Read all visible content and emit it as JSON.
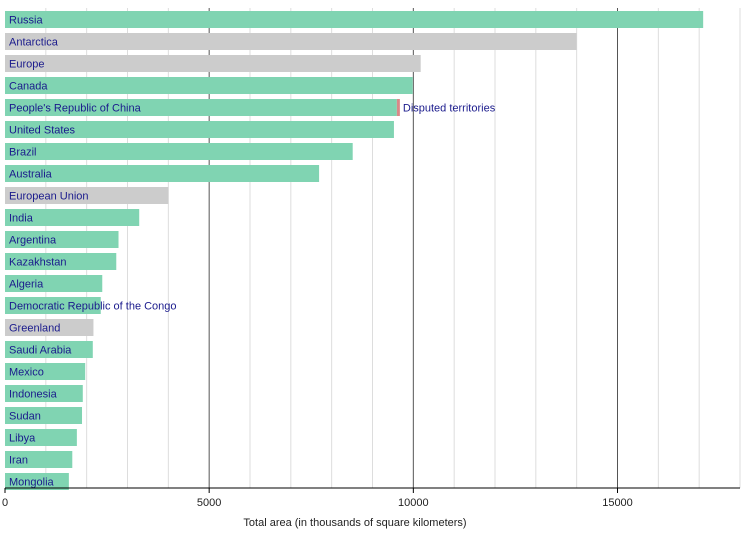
{
  "chart_data": {
    "type": "bar",
    "orientation": "horizontal",
    "xlabel": "Total area (in thousands of square kilometers)",
    "xlim": [
      0,
      18000
    ],
    "xticks": [
      0,
      5000,
      10000,
      15000
    ],
    "minor_grid_step": 1000,
    "grid": true,
    "colors": {
      "country": "#80d4b2",
      "region": "#cccccc",
      "disputed": "#d98888"
    },
    "categories": [
      "Russia",
      "Antarctica",
      "Europe",
      "Canada",
      "People's Republic of China",
      "United States",
      "Brazil",
      "Australia",
      "European Union",
      "India",
      "Argentina",
      "Kazakhstan",
      "Algeria",
      "Democratic Republic of the Congo",
      "Greenland",
      "Saudi Arabia",
      "Mexico",
      "Indonesia",
      "Sudan",
      "Libya",
      "Iran",
      "Mongolia"
    ],
    "values": [
      17098,
      14000,
      10180,
      9985,
      9597,
      9525,
      8515,
      7692,
      4000,
      3287,
      2780,
      2725,
      2382,
      2345,
      2166,
      2150,
      1964,
      1905,
      1886,
      1760,
      1648,
      1564
    ],
    "kinds": [
      "country",
      "region",
      "region",
      "country",
      "country",
      "country",
      "country",
      "country",
      "region",
      "country",
      "country",
      "country",
      "country",
      "country",
      "region",
      "country",
      "country",
      "country",
      "country",
      "country",
      "country",
      "country"
    ],
    "disputed": {
      "category": "People's Republic of China",
      "value": 60,
      "label": "Disputed territories"
    }
  }
}
